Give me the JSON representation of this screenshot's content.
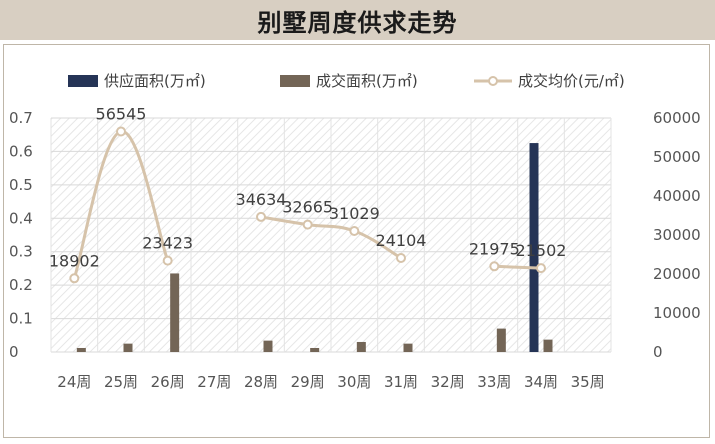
{
  "title": "别墅周度供求走势",
  "chart_data": {
    "type": "bar",
    "categories": [
      "24周",
      "25周",
      "26周",
      "27周",
      "28周",
      "29周",
      "30周",
      "31周",
      "32周",
      "33周",
      "34周",
      "35周"
    ],
    "series": [
      {
        "name": "供应面积(万㎡)",
        "kind": "bar",
        "axis": "left",
        "color": "#253456",
        "values": [
          0,
          0,
          0,
          0,
          0,
          0,
          0,
          0,
          0,
          0,
          0.625,
          0
        ]
      },
      {
        "name": "成交面积(万㎡)",
        "kind": "bar",
        "axis": "left",
        "color": "#736556",
        "values": [
          0.012,
          0.025,
          0.235,
          0,
          0.034,
          0.012,
          0.03,
          0.025,
          0,
          0.07,
          0.037,
          0
        ]
      },
      {
        "name": "成交均价(元/㎡)",
        "kind": "line",
        "axis": "right",
        "color": "#d6c3aa",
        "values": [
          18902,
          56545,
          23423,
          null,
          34634,
          32665,
          31029,
          24104,
          null,
          21975,
          21502,
          null
        ],
        "labels": [
          "18902",
          "56545",
          "23423",
          "",
          "34634",
          "32665",
          "31029",
          "24104",
          "",
          "21975",
          "21502",
          ""
        ]
      }
    ],
    "left_axis": {
      "min": 0,
      "max": 0.7,
      "ticks": [
        "0",
        "0.1",
        "0.2",
        "0.3",
        "0.4",
        "0.5",
        "0.6",
        "0.7"
      ]
    },
    "right_axis": {
      "min": 0,
      "max": 60000,
      "ticks": [
        "0",
        "10000",
        "20000",
        "30000",
        "40000",
        "50000",
        "60000"
      ]
    },
    "legend_position": "top",
    "grid": true
  }
}
